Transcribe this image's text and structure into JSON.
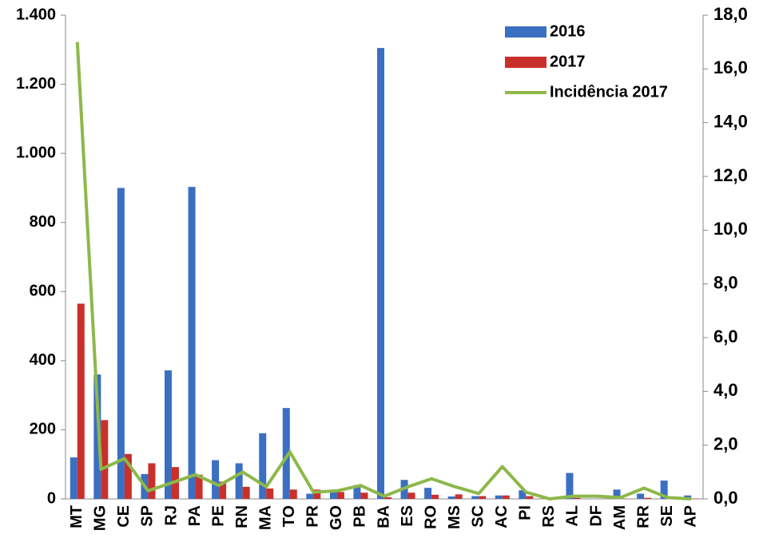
{
  "chart_data": {
    "type": "bar",
    "categories": [
      "MT",
      "MG",
      "CE",
      "SP",
      "RJ",
      "PA",
      "PE",
      "RN",
      "MA",
      "TO",
      "PR",
      "GO",
      "PB",
      "BA",
      "ES",
      "RO",
      "MS",
      "SC",
      "AC",
      "PI",
      "RS",
      "AL",
      "DF",
      "AM",
      "RR",
      "SE",
      "AP"
    ],
    "series": [
      {
        "name": "2016",
        "color": "#3b6fc2",
        "type": "bar",
        "values": [
          120,
          360,
          900,
          72,
          372,
          903,
          112,
          103,
          190,
          263,
          15,
          22,
          40,
          1305,
          55,
          32,
          7,
          8,
          10,
          25,
          0,
          75,
          0,
          27,
          15,
          53,
          10
        ]
      },
      {
        "name": "2017",
        "color": "#c9302c",
        "type": "bar",
        "values": [
          565,
          228,
          130,
          103,
          92,
          70,
          50,
          35,
          30,
          27,
          27,
          20,
          18,
          5,
          18,
          12,
          13,
          8,
          10,
          8,
          1,
          3,
          0,
          1,
          3,
          2,
          1
        ]
      },
      {
        "name": "Incidência 2017",
        "color": "#8db84a",
        "type": "line",
        "axis": "y2",
        "values": [
          17.0,
          1.1,
          1.5,
          0.3,
          0.6,
          0.9,
          0.5,
          1.0,
          0.45,
          1.75,
          0.25,
          0.3,
          0.5,
          0.1,
          0.45,
          0.75,
          0.45,
          0.2,
          1.2,
          0.25,
          0.0,
          0.1,
          0.1,
          0.05,
          0.4,
          0.05,
          0.0
        ]
      }
    ],
    "ylim": [
      0,
      1400
    ],
    "yticks": [
      0,
      {
        "value": 200,
        "label": "200"
      },
      {
        "value": 400,
        "label": "400"
      },
      {
        "value": 600,
        "label": "600"
      },
      {
        "value": 800,
        "label": "800"
      },
      {
        "value": 1000,
        "label": "1.000"
      },
      {
        "value": 1200,
        "label": "1.200"
      },
      {
        "value": 1400,
        "label": "1.400"
      }
    ],
    "y2lim": [
      0,
      18
    ],
    "y2ticks": [
      {
        "value": 0,
        "label": "0,0"
      },
      {
        "value": 2,
        "label": "2,0"
      },
      {
        "value": 4,
        "label": "4,0"
      },
      {
        "value": 6,
        "label": "6,0"
      },
      {
        "value": 8,
        "label": "8,0"
      },
      {
        "value": 10,
        "label": "10,0"
      },
      {
        "value": 12,
        "label": "12,0"
      },
      {
        "value": 14,
        "label": "14,0"
      },
      {
        "value": 16,
        "label": "16,0"
      },
      {
        "value": 18,
        "label": "18,0"
      }
    ],
    "legend": "top-right",
    "grid": false
  }
}
